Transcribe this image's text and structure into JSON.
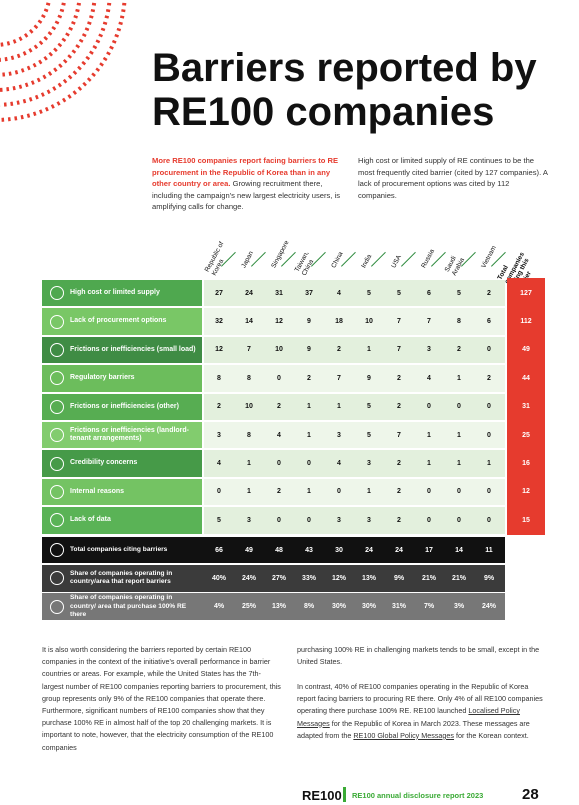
{
  "title": "Barriers reported by RE100 companies",
  "intro": {
    "left_highlight": "More RE100 companies report facing barriers to RE procurement in the Republic of Korea than in any other country or area.",
    "left_text": " Growing recruitment there, including the campaign's new largest electricity users, is amplifying calls for change.",
    "right_text": "High cost or limited supply of RE continues to be the most frequently cited barrier (cited by 127 companies). A lack of procurement options was cited by 112 companies."
  },
  "table": {
    "columns": [
      "Republic of Korea",
      "Japan",
      "Singapore",
      "Taiwan, China",
      "China",
      "India",
      "USA",
      "Russia",
      "Saudi Arabia",
      "Vietnam"
    ],
    "total_header": "Total companies citing this barrier",
    "rows": [
      {
        "label": "High cost or limited supply",
        "values": [
          27,
          24,
          31,
          37,
          4,
          5,
          5,
          6,
          5,
          2
        ],
        "total": 127
      },
      {
        "label": "Lack of procurement options",
        "values": [
          32,
          14,
          12,
          9,
          18,
          10,
          7,
          7,
          8,
          6
        ],
        "total": 112
      },
      {
        "label": "Frictions or inefficiencies (small load)",
        "values": [
          12,
          7,
          10,
          9,
          2,
          1,
          7,
          3,
          2,
          0
        ],
        "total": 49
      },
      {
        "label": "Regulatory barriers",
        "values": [
          8,
          8,
          0,
          2,
          7,
          9,
          2,
          4,
          1,
          2
        ],
        "total": 44
      },
      {
        "label": "Frictions or inefficiencies (other)",
        "values": [
          2,
          10,
          2,
          1,
          1,
          5,
          2,
          0,
          0,
          0
        ],
        "total": 31
      },
      {
        "label": "Frictions or inefficiencies (landlord-tenant arrangements)",
        "values": [
          3,
          8,
          4,
          1,
          3,
          5,
          7,
          1,
          1,
          0
        ],
        "total": 25
      },
      {
        "label": "Credibility concerns",
        "values": [
          4,
          1,
          0,
          0,
          4,
          3,
          2,
          1,
          1,
          1
        ],
        "total": 16
      },
      {
        "label": "Internal reasons",
        "values": [
          0,
          1,
          2,
          1,
          0,
          1,
          2,
          0,
          0,
          0
        ],
        "total": 12
      },
      {
        "label": "Lack of data",
        "values": [
          5,
          3,
          0,
          0,
          3,
          3,
          2,
          0,
          0,
          0
        ],
        "total": 15
      }
    ],
    "summary": [
      {
        "label": "Total companies citing barriers",
        "values": [
          66,
          49,
          48,
          43,
          30,
          24,
          24,
          17,
          14,
          11
        ]
      },
      {
        "label": "Share of companies operating in country/area that report barriers",
        "values": [
          "40%",
          "24%",
          "27%",
          "33%",
          "12%",
          "13%",
          "9%",
          "21%",
          "21%",
          "9%"
        ]
      },
      {
        "label": "Share of companies operating in country/ area that purchase 100% RE there",
        "values": [
          "4%",
          "25%",
          "13%",
          "8%",
          "30%",
          "30%",
          "31%",
          "7%",
          "3%",
          "24%"
        ]
      }
    ]
  },
  "body": {
    "left": "It is also worth considering the barriers reported by certain RE100 companies in the context of the initiative's overall performance in barrier countries or areas. For example, while the United States has the 7th-largest number of RE100 companies reporting barriers to procurement, this group represents only 9% of the RE100 companies that operate there. Furthermore, significant numbers of RE100 companies show that they purchase 100% RE in almost half of the top 20 challenging markets. It is important to note, however, that the electricity consumption of the RE100 companies",
    "right_1": "purchasing 100% RE in challenging markets tends to be small, except in the United States.",
    "right_2": [
      "In contrast, 40% of RE100 companies operating in the Republic of Korea report facing barriers to procuring RE there. Only 4% of all RE100 companies operating there purchase 100% RE. RE100 launched ",
      "Localised Policy Messages",
      " for the Republic of Korea in March 2023. These messages are adapted from the ",
      "RE100 Global Policy Messages",
      " for the Korean context."
    ]
  },
  "footer": {
    "brand": "RE100",
    "report": "RE100 annual disclosure report 2023",
    "page": "28"
  }
}
